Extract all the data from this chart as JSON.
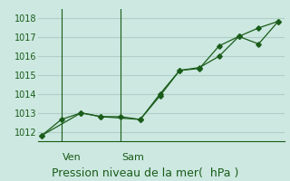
{
  "bg_color": "#cce8e0",
  "grid_color": "#b0cfc8",
  "line_color": "#1a5c1a",
  "marker_color": "#1a5c1a",
  "axis_color": "#1a5c1a",
  "text_color": "#1a5c1a",
  "xlabel": "Pression niveau de la mer(  hPa )",
  "ylim": [
    1011.5,
    1018.5
  ],
  "yticks": [
    1012,
    1013,
    1014,
    1015,
    1016,
    1017,
    1018
  ],
  "series1_x": [
    0,
    1,
    2,
    3,
    5,
    6,
    7,
    8,
    9,
    10,
    11,
    12
  ],
  "series1_y": [
    1011.8,
    1012.65,
    1013.0,
    1012.8,
    1012.65,
    1013.9,
    1015.25,
    1015.4,
    1016.0,
    1017.05,
    1016.65,
    1017.85
  ],
  "series2_x": [
    0,
    2,
    3,
    4,
    5,
    6,
    7,
    8,
    9,
    10,
    11,
    12
  ],
  "series2_y": [
    1011.8,
    1013.0,
    1012.8,
    1012.8,
    1012.65,
    1014.0,
    1015.25,
    1015.35,
    1016.55,
    1017.05,
    1017.5,
    1017.85
  ],
  "vline_ven": 1,
  "vline_sam": 4,
  "ven_label": "Ven",
  "sam_label": "Sam",
  "x_min": -0.2,
  "x_max": 12.3,
  "label_fontsize": 8,
  "tick_fontsize": 7,
  "xlabel_fontsize": 9
}
